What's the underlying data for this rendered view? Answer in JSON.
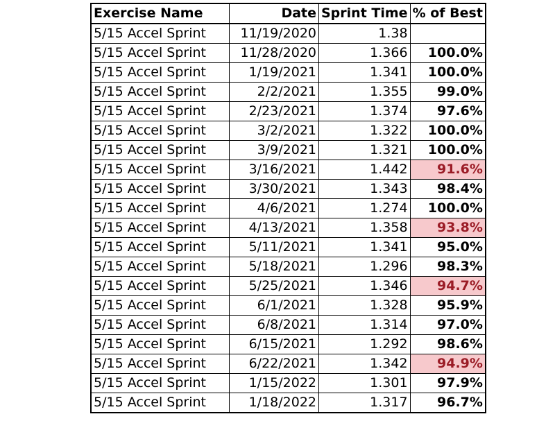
{
  "table": {
    "headers": [
      "Exercise Name",
      "Date",
      "Sprint Time",
      "% of Best"
    ],
    "highlight": {
      "fill": "#f7c9cc",
      "text": "#9b1c26"
    },
    "rows": [
      {
        "exercise": "5/15 Accel Sprint",
        "date": "11/19/2020",
        "time": "1.38",
        "pct": "",
        "low": false
      },
      {
        "exercise": "5/15 Accel Sprint",
        "date": "11/28/2020",
        "time": "1.366",
        "pct": "100.0%",
        "low": false
      },
      {
        "exercise": "5/15 Accel Sprint",
        "date": "1/19/2021",
        "time": "1.341",
        "pct": "100.0%",
        "low": false
      },
      {
        "exercise": "5/15 Accel Sprint",
        "date": "2/2/2021",
        "time": "1.355",
        "pct": "99.0%",
        "low": false
      },
      {
        "exercise": "5/15 Accel Sprint",
        "date": "2/23/2021",
        "time": "1.374",
        "pct": "97.6%",
        "low": false
      },
      {
        "exercise": "5/15 Accel Sprint",
        "date": "3/2/2021",
        "time": "1.322",
        "pct": "100.0%",
        "low": false
      },
      {
        "exercise": "5/15 Accel Sprint",
        "date": "3/9/2021",
        "time": "1.321",
        "pct": "100.0%",
        "low": false
      },
      {
        "exercise": "5/15 Accel Sprint",
        "date": "3/16/2021",
        "time": "1.442",
        "pct": "91.6%",
        "low": true
      },
      {
        "exercise": "5/15 Accel Sprint",
        "date": "3/30/2021",
        "time": "1.343",
        "pct": "98.4%",
        "low": false
      },
      {
        "exercise": "5/15 Accel Sprint",
        "date": "4/6/2021",
        "time": "1.274",
        "pct": "100.0%",
        "low": false
      },
      {
        "exercise": "5/15 Accel Sprint",
        "date": "4/13/2021",
        "time": "1.358",
        "pct": "93.8%",
        "low": true
      },
      {
        "exercise": "5/15 Accel Sprint",
        "date": "5/11/2021",
        "time": "1.341",
        "pct": "95.0%",
        "low": false
      },
      {
        "exercise": "5/15 Accel Sprint",
        "date": "5/18/2021",
        "time": "1.296",
        "pct": "98.3%",
        "low": false
      },
      {
        "exercise": "5/15 Accel Sprint",
        "date": "5/25/2021",
        "time": "1.346",
        "pct": "94.7%",
        "low": true
      },
      {
        "exercise": "5/15 Accel Sprint",
        "date": "6/1/2021",
        "time": "1.328",
        "pct": "95.9%",
        "low": false
      },
      {
        "exercise": "5/15 Accel Sprint",
        "date": "6/8/2021",
        "time": "1.314",
        "pct": "97.0%",
        "low": false
      },
      {
        "exercise": "5/15 Accel Sprint",
        "date": "6/15/2021",
        "time": "1.292",
        "pct": "98.6%",
        "low": false
      },
      {
        "exercise": "5/15 Accel Sprint",
        "date": "6/22/2021",
        "time": "1.342",
        "pct": "94.9%",
        "low": true
      },
      {
        "exercise": "5/15 Accel Sprint",
        "date": "1/15/2022",
        "time": "1.301",
        "pct": "97.9%",
        "low": false
      },
      {
        "exercise": "5/15 Accel Sprint",
        "date": "1/18/2022",
        "time": "1.317",
        "pct": "96.7%",
        "low": false
      }
    ]
  }
}
